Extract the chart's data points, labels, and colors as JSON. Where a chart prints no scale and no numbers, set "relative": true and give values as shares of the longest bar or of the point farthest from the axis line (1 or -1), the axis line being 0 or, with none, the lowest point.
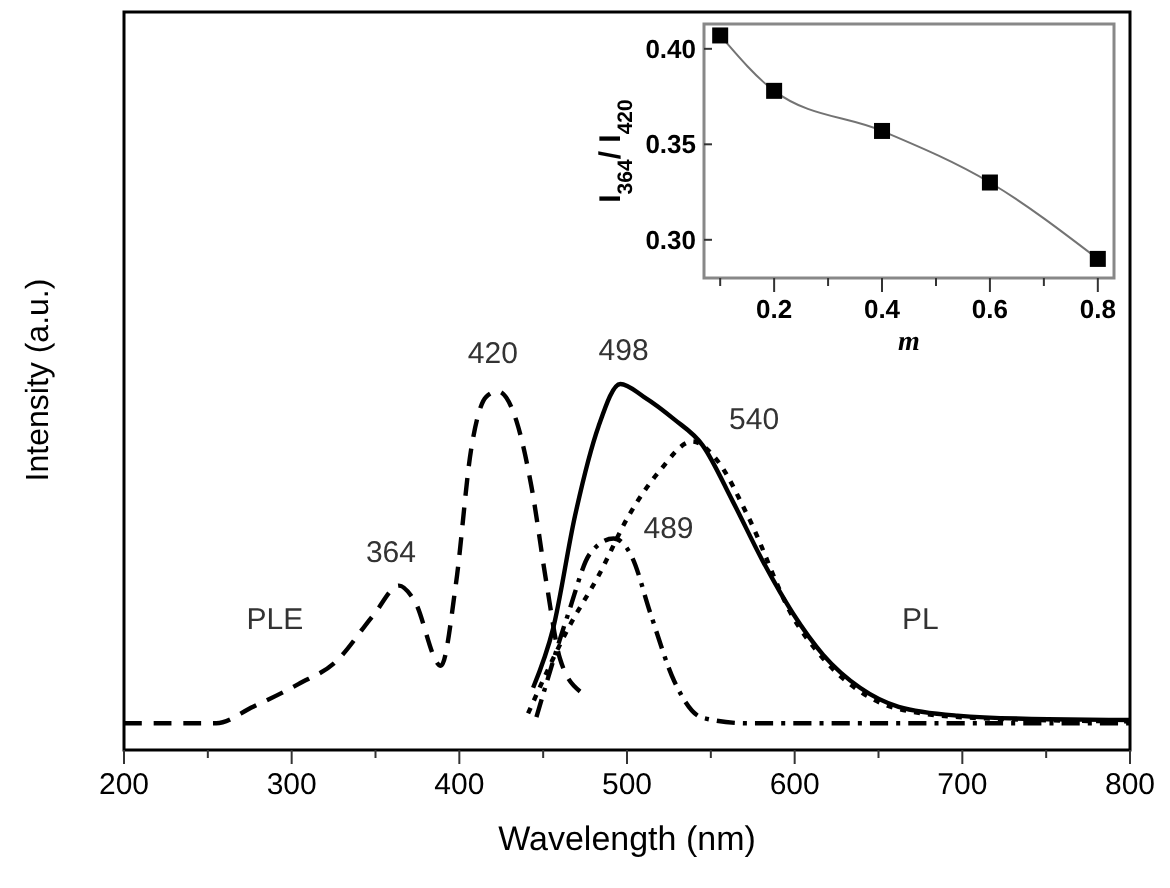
{
  "chart_data": [
    {
      "type": "line",
      "relative": true,
      "xlabel": "Wavelength (nm)",
      "ylabel": "Intensity (a.u.)",
      "xlim": [
        200,
        800
      ],
      "xticks": [
        200,
        {
          "value": 250,
          "label": null
        },
        300,
        {
          "value": 350,
          "label": null
        },
        400,
        {
          "value": 450,
          "label": null
        },
        500,
        {
          "value": 550,
          "label": null
        },
        600,
        {
          "value": 650,
          "label": null
        },
        700,
        {
          "value": 750,
          "label": null
        },
        800
      ],
      "tick_labels": "x",
      "marker": "none",
      "series": [
        {
          "color": "#000000",
          "line_style": "dashed",
          "x": [
            200,
            255,
            277,
            304,
            326,
            349,
            364,
            373,
            389,
            398,
            407,
            416,
            423,
            434,
            443,
            452,
            460,
            472
          ],
          "values": [
            0.073,
            0.073,
            0.118,
            0.18,
            0.24,
            0.37,
            0.449,
            0.41,
            0.23,
            0.455,
            0.82,
            0.965,
            0.98,
            0.9,
            0.72,
            0.455,
            0.25,
            0.16
          ]
        },
        {
          "color": "#000000",
          "line_style": "solid",
          "x": [
            444,
            456,
            469,
            483,
            496,
            510,
            528,
            545,
            563,
            581,
            599,
            617,
            639,
            662,
            697,
            751,
            800
          ],
          "values": [
            0.17,
            0.333,
            0.64,
            0.884,
            1.0,
            0.965,
            0.904,
            0.833,
            0.68,
            0.516,
            0.373,
            0.26,
            0.17,
            0.118,
            0.094,
            0.084,
            0.082
          ]
        },
        {
          "color": "#000000",
          "line_style": "dotted",
          "x": [
            441,
            465,
            483,
            501,
            519,
            539,
            554,
            572,
            599,
            617,
            639,
            662,
            706,
            800
          ],
          "values": [
            0.1,
            0.333,
            0.476,
            0.64,
            0.76,
            0.843,
            0.79,
            0.64,
            0.363,
            0.25,
            0.16,
            0.112,
            0.088,
            0.078
          ]
        },
        {
          "color": "#000000",
          "line_style": "dashdot",
          "x": [
            446,
            465,
            478,
            492,
            503,
            514,
            528,
            545,
            572,
            800
          ],
          "values": [
            0.09,
            0.373,
            0.537,
            0.578,
            0.527,
            0.373,
            0.19,
            0.088,
            0.073,
            0.073
          ]
        }
      ],
      "annotations": [
        {
          "text": "364",
          "x": 364,
          "y": 0.449
        },
        {
          "text": "420",
          "x": 420,
          "y": 0.98
        },
        {
          "text": "498",
          "x": 498,
          "y": 1.0
        },
        {
          "text": "540",
          "x": 540,
          "y": 0.843
        },
        {
          "text": "489",
          "x": 489,
          "y": 0.578
        },
        "PLE",
        "PL"
      ]
    },
    {
      "type": "line",
      "xlabel": "m",
      "ylabel": "I$_{364}$/ I$_{420}$",
      "xlim": [
        0.07,
        0.83
      ],
      "ylim": [
        0.28,
        0.413
      ],
      "xticks": [
        {
          "value": 0.1,
          "label": null
        },
        0.2,
        {
          "value": 0.3,
          "label": null
        },
        0.4,
        {
          "value": 0.5,
          "label": null
        },
        0.6,
        {
          "value": 0.7,
          "label": null
        },
        0.8
      ],
      "yticks": [
        {
          "value": 0.3,
          "label": "0.30"
        },
        {
          "value": 0.35,
          "label": "0.35"
        },
        {
          "value": 0.4,
          "label": "0.40"
        }
      ],
      "marker": "square",
      "series": [
        {
          "color": "#000000",
          "line_style": "solid",
          "x": [
            0.1,
            0.2,
            0.4,
            0.6,
            0.8
          ],
          "values": [
            0.407,
            0.378,
            0.357,
            0.33,
            0.29
          ]
        }
      ]
    }
  ]
}
